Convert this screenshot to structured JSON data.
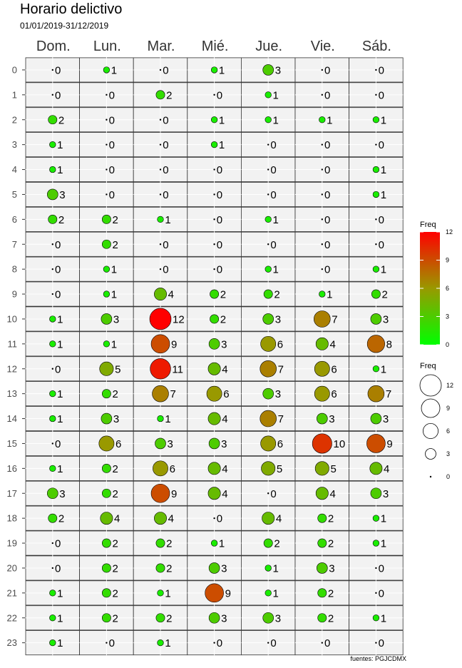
{
  "title": "Horario delictivo",
  "subtitle": "01/01/2019-31/12/2019",
  "caption": "fuentes: PGJCDMX",
  "chart_data": {
    "type": "scatter",
    "title": "Horario delictivo",
    "subtitle": "01/01/2019-31/12/2019",
    "days": [
      "Dom.",
      "Lun.",
      "Mar.",
      "Mié.",
      "Jue.",
      "Vie.",
      "Sáb."
    ],
    "hours": [
      "0",
      "1",
      "2",
      "3",
      "4",
      "5",
      "6",
      "7",
      "8",
      "9",
      "10",
      "11",
      "12",
      "13",
      "14",
      "15",
      "16",
      "17",
      "18",
      "19",
      "20",
      "21",
      "22",
      "23"
    ],
    "values": [
      [
        0,
        1,
        0,
        1,
        3,
        0,
        0
      ],
      [
        0,
        0,
        2,
        0,
        1,
        0,
        0
      ],
      [
        2,
        0,
        0,
        1,
        1,
        1,
        1
      ],
      [
        1,
        0,
        0,
        1,
        0,
        0,
        0
      ],
      [
        1,
        0,
        0,
        0,
        0,
        0,
        1
      ],
      [
        3,
        0,
        0,
        0,
        0,
        0,
        1
      ],
      [
        2,
        2,
        1,
        0,
        1,
        0,
        0
      ],
      [
        0,
        2,
        0,
        0,
        0,
        0,
        0
      ],
      [
        0,
        1,
        0,
        0,
        1,
        0,
        1
      ],
      [
        0,
        1,
        4,
        2,
        2,
        1,
        2
      ],
      [
        1,
        3,
        12,
        2,
        3,
        7,
        3
      ],
      [
        1,
        1,
        9,
        3,
        6,
        4,
        8
      ],
      [
        0,
        5,
        11,
        4,
        7,
        6,
        1
      ],
      [
        1,
        2,
        7,
        6,
        3,
        6,
        7
      ],
      [
        1,
        3,
        1,
        4,
        7,
        3,
        3
      ],
      [
        0,
        6,
        3,
        3,
        6,
        10,
        9
      ],
      [
        1,
        2,
        6,
        4,
        5,
        5,
        4
      ],
      [
        3,
        2,
        9,
        4,
        0,
        4,
        3
      ],
      [
        2,
        4,
        4,
        0,
        4,
        2,
        1
      ],
      [
        0,
        2,
        2,
        1,
        2,
        2,
        1
      ],
      [
        0,
        2,
        2,
        3,
        1,
        3,
        0
      ],
      [
        1,
        2,
        1,
        9,
        1,
        2,
        0
      ],
      [
        1,
        2,
        2,
        3,
        3,
        2,
        1
      ],
      [
        1,
        0,
        1,
        0,
        0,
        0,
        0
      ]
    ],
    "color_scale": {
      "low": "#00ff00",
      "mid": "#999900",
      "high": "#ff0000"
    },
    "legend": {
      "color": {
        "title": "Freq",
        "ticks": [
          0,
          3,
          6,
          9,
          12
        ]
      },
      "size": {
        "title": "Freq",
        "breaks": [
          12,
          9,
          6,
          3,
          0
        ]
      }
    },
    "range": [
      0,
      12
    ]
  }
}
